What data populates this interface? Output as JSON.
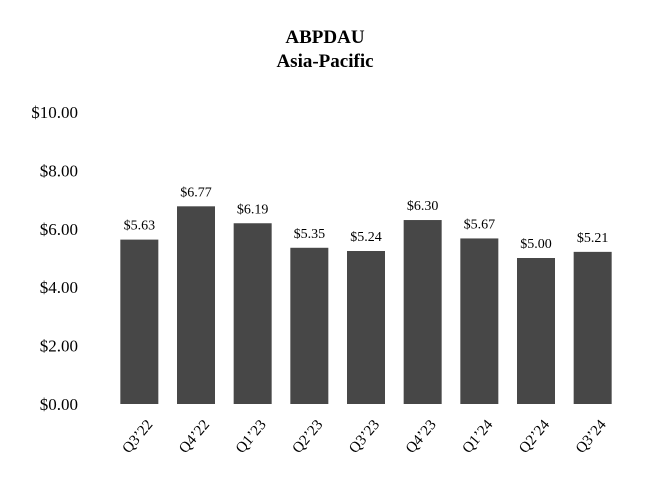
{
  "chart_data": {
    "type": "bar",
    "title": "ABPDAU",
    "subtitle": "Asia-Pacific",
    "categories": [
      "Q3’22",
      "Q4’22",
      "Q1’23",
      "Q2’23",
      "Q3’23",
      "Q4’23",
      "Q1’24",
      "Q2’24",
      "Q3’24"
    ],
    "values": [
      5.63,
      6.77,
      6.19,
      5.35,
      5.24,
      6.3,
      5.67,
      5.0,
      5.21
    ],
    "data_labels": [
      "$5.63",
      "$6.77",
      "$6.19",
      "$5.35",
      "$5.24",
      "$6.30",
      "$5.67",
      "$5.00",
      "$5.21"
    ],
    "yticks": [
      0,
      2,
      4,
      6,
      8,
      10
    ],
    "ytick_labels": [
      "$0.00",
      "$2.00",
      "$4.00",
      "$6.00",
      "$8.00",
      "$10.00"
    ],
    "ylim": [
      0,
      10
    ],
    "grid": false,
    "legend": "none",
    "bar_color": "#474747"
  }
}
